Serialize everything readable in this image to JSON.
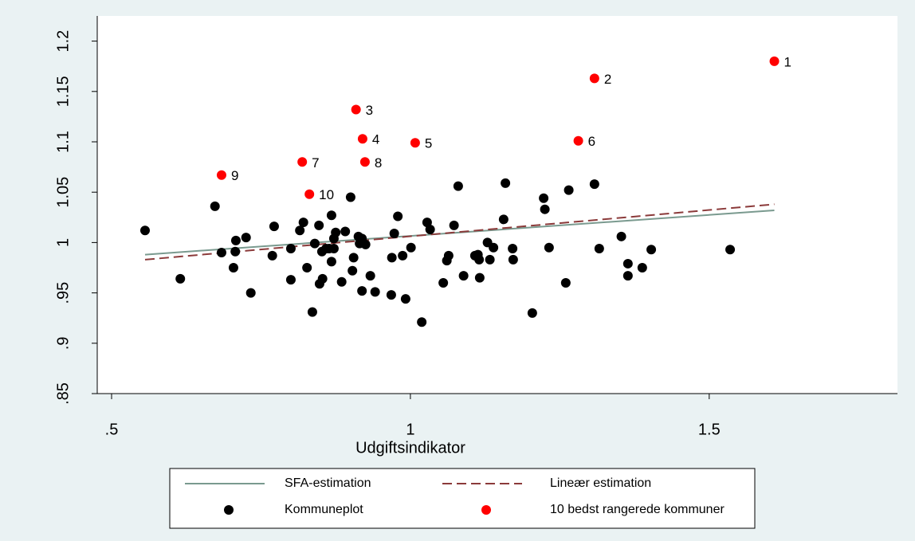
{
  "chart_data": {
    "type": "scatter",
    "x_label": "Udgiftsindikator",
    "xlim": [
      0.476,
      1.815
    ],
    "xticks": [
      {
        "value": 0.5,
        "label": ".5"
      },
      1,
      1.5
    ],
    "ylim": [
      0.85,
      1.225
    ],
    "yticks": [
      {
        "value": 0.85,
        "label": ".85"
      },
      {
        "value": 0.9,
        "label": ".9"
      },
      {
        "value": 0.95,
        "label": ".95"
      },
      1,
      1.05,
      1.1,
      1.15,
      1.2
    ],
    "series": [
      {
        "name": "SFA-estimation",
        "kind": "line",
        "color": "#7a9a8f",
        "x": [
          0.556,
          1.609
        ],
        "values": [
          0.988,
          1.032
        ]
      },
      {
        "name": "Lineær estimation",
        "kind": "line",
        "dashed": true,
        "color": "#8b3a3a",
        "x": [
          0.556,
          1.609
        ],
        "values": [
          0.983,
          1.038
        ]
      },
      {
        "name": "Kommuneplot",
        "kind": "points",
        "color": "#000000",
        "x": [
          0.556,
          0.615,
          0.673,
          0.684,
          0.704,
          0.707,
          0.708,
          0.725,
          0.733,
          0.769,
          0.772,
          0.8,
          0.8,
          0.815,
          0.821,
          0.827,
          0.836,
          0.84,
          0.847,
          0.848,
          0.852,
          0.853,
          0.859,
          0.864,
          0.868,
          0.868,
          0.872,
          0.872,
          0.875,
          0.885,
          0.891,
          0.9,
          0.903,
          0.905,
          0.913,
          0.915,
          0.919,
          0.919,
          0.925,
          0.933,
          0.941,
          0.968,
          0.969,
          0.973,
          0.979,
          0.987,
          0.992,
          1.001,
          1.019,
          1.028,
          1.033,
          1.055,
          1.061,
          1.064,
          1.073,
          1.08,
          1.089,
          1.108,
          1.113,
          1.115,
          1.116,
          1.129,
          1.133,
          1.139,
          1.156,
          1.159,
          1.171,
          1.172,
          1.204,
          1.223,
          1.225,
          1.232,
          1.26,
          1.265,
          1.308,
          1.316,
          1.353,
          1.364,
          1.364,
          1.388,
          1.403,
          1.535
        ],
        "values": [
          1.012,
          0.964,
          1.036,
          0.99,
          0.975,
          0.991,
          1.002,
          1.005,
          0.95,
          0.987,
          1.016,
          0.963,
          0.994,
          1.012,
          1.02,
          0.975,
          0.931,
          0.999,
          1.017,
          0.959,
          0.991,
          0.964,
          0.994,
          0.994,
          1.027,
          0.981,
          1.004,
          0.994,
          1.01,
          0.961,
          1.011,
          1.045,
          0.972,
          0.985,
          1.006,
          0.999,
          0.952,
          1.004,
          0.998,
          0.967,
          0.951,
          0.948,
          0.985,
          1.009,
          1.026,
          0.987,
          0.944,
          0.995,
          0.921,
          1.02,
          1.013,
          0.96,
          0.982,
          0.987,
          1.017,
          1.056,
          0.967,
          0.987,
          0.988,
          0.983,
          0.965,
          1.0,
          0.983,
          0.995,
          1.023,
          1.059,
          0.994,
          0.983,
          0.93,
          1.044,
          1.033,
          0.995,
          0.96,
          1.052,
          1.058,
          0.994,
          1.006,
          0.979,
          0.967,
          0.975,
          0.993,
          0.993
        ]
      },
      {
        "name": "10 bedst rangerede kommuner",
        "kind": "points",
        "color": "#ff0000",
        "x": [
          1.609,
          1.308,
          0.909,
          0.92,
          1.008,
          1.281,
          0.819,
          0.924,
          0.684,
          0.831
        ],
        "values": [
          1.18,
          1.163,
          1.132,
          1.103,
          1.099,
          1.101,
          1.08,
          1.08,
          1.067,
          1.048
        ],
        "labels": [
          "1",
          "2",
          "3",
          "4",
          "5",
          "6",
          "7",
          "8",
          "9",
          "10"
        ]
      }
    ]
  }
}
